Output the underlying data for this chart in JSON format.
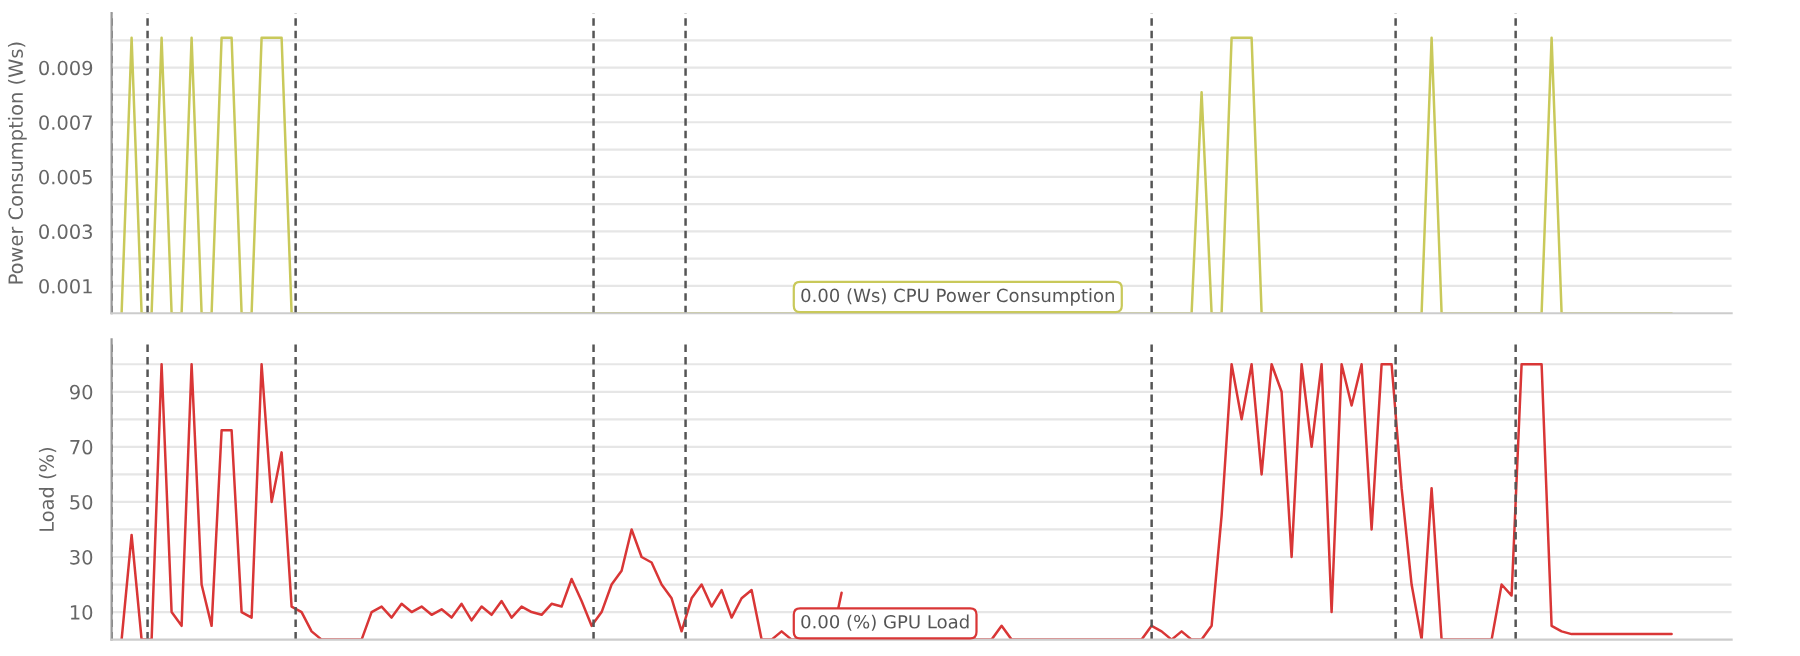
{
  "chart_data": [
    {
      "type": "line",
      "ylabel": "Power Consumption (Ws)",
      "tick_labels": "y",
      "grid": "y",
      "categories": [
        null,
        null,
        null,
        null,
        null,
        null,
        null,
        null,
        null,
        null,
        null,
        null,
        null,
        null,
        null,
        null,
        null,
        null,
        null,
        null,
        null,
        null,
        null,
        null,
        null,
        null,
        null,
        null,
        null,
        null,
        null,
        null,
        null,
        null,
        null,
        null,
        null,
        null,
        null,
        null,
        null,
        null,
        null,
        null,
        null,
        null,
        null,
        null,
        null,
        null,
        null,
        null,
        null,
        null,
        null,
        null,
        null,
        null,
        null,
        null,
        null,
        null,
        null,
        null,
        null,
        null,
        null,
        null,
        null,
        null,
        null,
        null,
        null,
        null,
        null,
        null,
        null,
        null,
        null,
        null,
        null,
        null,
        null,
        null,
        null,
        null,
        null,
        null,
        null,
        null,
        null,
        null,
        null,
        null,
        null,
        null,
        null,
        null,
        null,
        null,
        null,
        null,
        null,
        null,
        null,
        null,
        null,
        null,
        null,
        null,
        null,
        null,
        null,
        null,
        null,
        null,
        null,
        null,
        null,
        null,
        null,
        null,
        null,
        null,
        null,
        null,
        null,
        null,
        null,
        null,
        null,
        null,
        null,
        null,
        null,
        null,
        null,
        null,
        null,
        null,
        null,
        null,
        null,
        null,
        null,
        null,
        null,
        null,
        null,
        null,
        null,
        null,
        null,
        null,
        null,
        null,
        null,
        null,
        null,
        null,
        null,
        null,
        null
      ],
      "series": [
        {
          "color": "#c9c95a",
          "values": [
            null,
            0,
            0.0101,
            0,
            0,
            0.0101,
            0,
            0,
            0.0101,
            0,
            0,
            0.0101,
            0.0101,
            0,
            0,
            0.0101,
            0.0101,
            0.0101,
            0,
            0,
            0,
            0,
            0,
            0,
            0,
            0,
            0,
            0,
            0,
            0,
            0,
            0,
            0,
            0,
            0,
            0,
            0,
            0,
            0,
            0,
            0,
            0,
            0,
            0,
            0,
            0,
            0,
            0,
            0,
            0,
            0,
            0,
            0,
            0,
            0,
            0,
            0,
            0,
            0,
            0,
            0,
            0,
            0,
            0,
            0,
            0,
            0,
            0,
            0,
            0,
            0,
            0,
            0,
            0,
            0,
            0,
            0,
            0,
            0,
            0,
            0,
            0,
            0,
            0,
            0,
            0,
            0,
            0,
            0,
            0,
            0,
            0,
            0,
            0,
            0,
            0,
            0,
            0,
            0,
            0,
            0,
            0,
            0,
            0,
            0,
            0,
            0,
            0,
            0,
            0.0081,
            0,
            0,
            0.0101,
            0.0101,
            0.0101,
            0,
            0,
            0,
            0,
            0,
            0,
            0,
            0,
            0,
            0,
            0,
            0,
            0,
            0,
            0,
            0,
            0,
            0.0101,
            0,
            0,
            0,
            0,
            0,
            0,
            0,
            0,
            0,
            0,
            0,
            0.0101,
            0,
            0,
            0,
            0,
            0,
            0,
            0,
            0,
            0,
            0,
            0,
            0,
            null,
            null,
            null,
            null,
            null,
            null
          ]
        }
      ],
      "ylim": [
        0,
        0.011
      ],
      "yticks": [
        0.001,
        {
          "value": 0.002,
          "label": null
        },
        0.003,
        {
          "value": 0.004,
          "label": null
        },
        0.005,
        {
          "value": 0.006,
          "label": null
        },
        0.007,
        {
          "value": 0.008,
          "label": null
        },
        0.009,
        {
          "value": 0.01,
          "label": null
        }
      ],
      "annotations": [
        "0.00 (Ws) CPU Power Consumption"
      ]
    },
    {
      "type": "line",
      "ylabel": "Load (%)",
      "tick_labels": "y",
      "grid": "y",
      "categories": [
        null,
        null,
        null,
        null,
        null,
        null,
        null,
        null,
        null,
        null,
        null,
        null,
        null,
        null,
        null,
        null,
        null,
        null,
        null,
        null,
        null,
        null,
        null,
        null,
        null,
        null,
        null,
        null,
        null,
        null,
        null,
        null,
        null,
        null,
        null,
        null,
        null,
        null,
        null,
        null,
        null,
        null,
        null,
        null,
        null,
        null,
        null,
        null,
        null,
        null,
        null,
        null,
        null,
        null,
        null,
        null,
        null,
        null,
        null,
        null,
        null,
        null,
        null,
        null,
        null,
        null,
        null,
        null,
        null,
        null,
        null,
        null,
        null,
        null,
        null,
        null,
        null,
        null,
        null,
        null,
        null,
        null,
        null,
        null,
        null,
        null,
        null,
        null,
        null,
        null,
        null,
        null,
        null,
        null,
        null,
        null,
        null,
        null,
        null,
        null,
        null,
        null,
        null,
        null,
        null,
        null,
        null,
        null,
        null,
        null,
        null,
        null,
        null,
        null,
        null,
        null,
        null,
        null,
        null,
        null,
        null,
        null,
        null,
        null,
        null,
        null,
        null,
        null,
        null,
        null,
        null,
        null,
        null,
        null,
        null,
        null,
        null,
        null,
        null,
        null,
        null,
        null,
        null,
        null,
        null,
        null,
        null,
        null,
        null,
        null,
        null,
        null,
        null,
        null,
        null,
        null,
        null,
        null,
        null,
        null,
        null,
        null,
        null
      ],
      "series": [
        {
          "color": "#d93636",
          "values": [
            null,
            0,
            38,
            0,
            0,
            100,
            10,
            5,
            100,
            20,
            5,
            76,
            76,
            10,
            8,
            100,
            50,
            68,
            12,
            10,
            3,
            0,
            0,
            0,
            0,
            0,
            10,
            12,
            8,
            13,
            10,
            12,
            9,
            11,
            8,
            13,
            7,
            12,
            9,
            14,
            8,
            12,
            10,
            9,
            13,
            12,
            22,
            14,
            5,
            10,
            20,
            25,
            40,
            30,
            28,
            20,
            15,
            3,
            15,
            20,
            12,
            18,
            8,
            15,
            18,
            0,
            0,
            3,
            0,
            0,
            0,
            0,
            0,
            17,
            null,
            0,
            0,
            0,
            0,
            0,
            0,
            0,
            0,
            0,
            0,
            0,
            0,
            0,
            0,
            5,
            0,
            0,
            0,
            0,
            0,
            0,
            0,
            0,
            0,
            0,
            0,
            0,
            0,
            0,
            5,
            3,
            0,
            3,
            0,
            0,
            5,
            45,
            100,
            80,
            100,
            60,
            100,
            90,
            30,
            100,
            70,
            100,
            10,
            100,
            85,
            100,
            40,
            100,
            100,
            55,
            20,
            0,
            55,
            0,
            0,
            0,
            0,
            0,
            0,
            20,
            16,
            100,
            100,
            100,
            5,
            3,
            2,
            2,
            2,
            2,
            2,
            2,
            2,
            2,
            2,
            2,
            2,
            null,
            null,
            null,
            null,
            null,
            null
          ]
        }
      ],
      "ylim": [
        0,
        109
      ],
      "yticks": [
        10,
        {
          "value": 20,
          "label": null
        },
        30,
        {
          "value": 40,
          "label": null
        },
        50,
        {
          "value": 60,
          "label": null
        },
        70,
        {
          "value": 80,
          "label": null
        },
        90,
        {
          "value": 100,
          "label": null
        }
      ],
      "annotations": [
        "0.00 (%) GPU Load"
      ]
    }
  ]
}
